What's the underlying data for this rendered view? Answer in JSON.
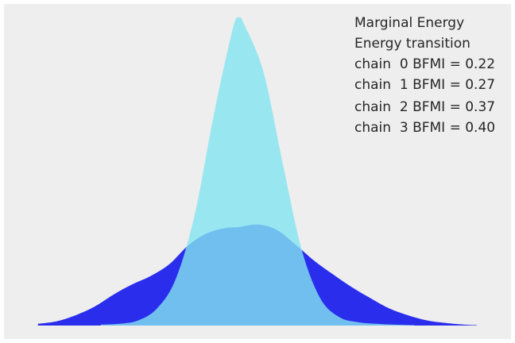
{
  "chart_data": {
    "type": "area",
    "title": "",
    "xlabel": "",
    "ylabel": "",
    "grid": false,
    "legend_placement": "top-right",
    "background_color": "#eeeeee",
    "x_axis_ticks_visible": false,
    "y_axis_ticks_visible": false,
    "series": [
      {
        "name": "Marginal Energy",
        "color": "#2a2eec",
        "x": [
          -3.2,
          -2.9,
          -2.6,
          -2.3,
          -2.0,
          -1.7,
          -1.4,
          -1.1,
          -0.8,
          -0.5,
          -0.2,
          0.0,
          0.3,
          0.6,
          0.9,
          1.2,
          1.5,
          1.8,
          2.1,
          2.4,
          2.7,
          3.0,
          3.3,
          3.6,
          3.8
        ],
        "values": [
          0.02,
          0.05,
          0.12,
          0.22,
          0.36,
          0.48,
          0.58,
          0.72,
          0.94,
          1.08,
          1.14,
          1.15,
          1.18,
          1.12,
          0.95,
          0.76,
          0.6,
          0.45,
          0.32,
          0.2,
          0.12,
          0.06,
          0.03,
          0.01,
          0.005
        ]
      },
      {
        "name": "Energy transition",
        "color": "#82e4f0",
        "x": [
          -2.2,
          -1.9,
          -1.6,
          -1.3,
          -1.0,
          -0.7,
          -0.4,
          -0.1,
          0.0,
          0.1,
          0.4,
          0.7,
          1.0,
          1.3,
          1.6,
          1.9,
          2.2,
          2.5,
          2.8
        ],
        "values": [
          0.01,
          0.02,
          0.06,
          0.2,
          0.55,
          1.3,
          2.45,
          3.45,
          3.6,
          3.5,
          2.95,
          1.9,
          0.9,
          0.32,
          0.1,
          0.04,
          0.02,
          0.01,
          0.005
        ]
      }
    ],
    "legend_entries": [
      "Marginal Energy",
      "Energy transition",
      "chain  0 BFMI = 0.22",
      "chain  1 BFMI = 0.27",
      "chain  2 BFMI = 0.37",
      "chain  3 BFMI = 0.40"
    ],
    "xlim": [
      -3.4,
      4.0
    ],
    "ylim": [
      0,
      3.6
    ]
  }
}
